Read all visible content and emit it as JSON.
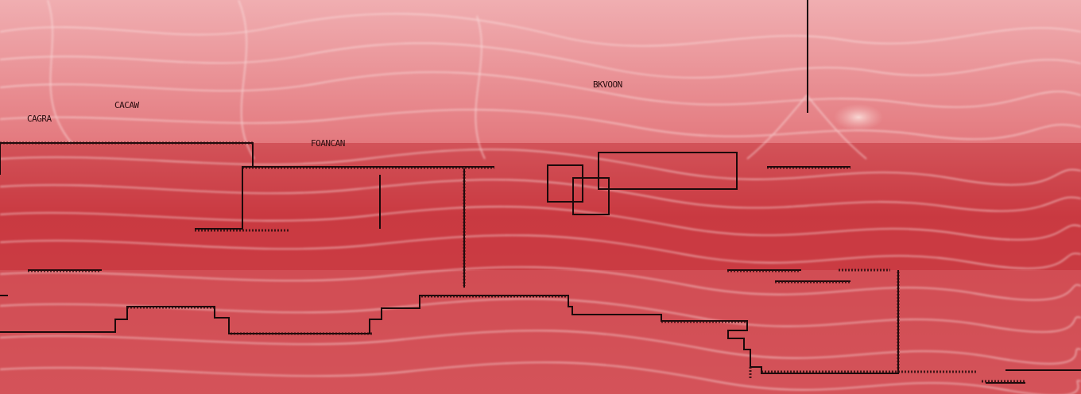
{
  "scene": {
    "description_free": true,
    "palette": {
      "sky_top": "#f2b9bc",
      "sky_mid": "#e8878b",
      "band_red": "#c8343c",
      "band_deep": "#b72a33",
      "fiber": "#fbe3e2",
      "ink": "#1c0a0b"
    },
    "labels": {
      "top_center": "BKVOON",
      "top_left": "CACAW",
      "left_mid": "CAGRA",
      "center_left": "FOANCAN"
    }
  }
}
